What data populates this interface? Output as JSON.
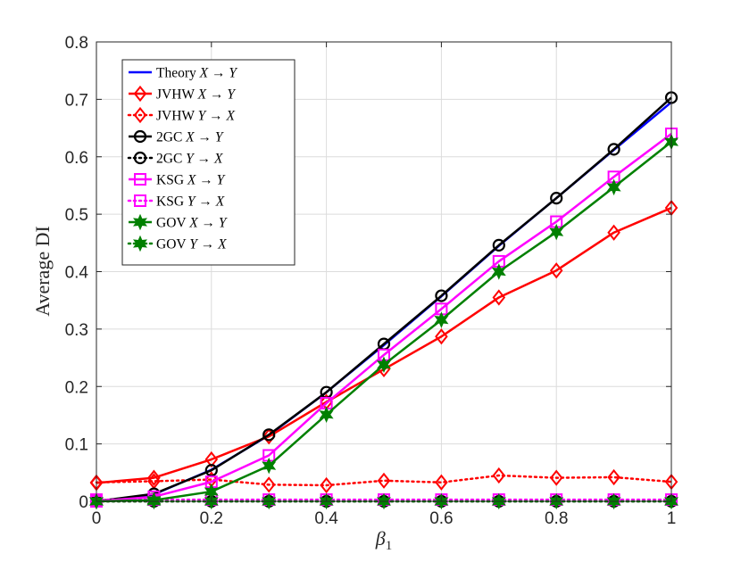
{
  "chart_data": {
    "type": "line",
    "xlabel": "β1",
    "xlabel_base": "β",
    "xlabel_sub": "1",
    "ylabel": "Average DI",
    "xlim": [
      0,
      1
    ],
    "ylim": [
      0,
      0.8
    ],
    "x_ticks": [
      0,
      0.2,
      0.4,
      0.6,
      0.8,
      1
    ],
    "x_tick_labels": [
      "0",
      "0.2",
      "0.4",
      "0.6",
      "0.8",
      "1"
    ],
    "y_ticks": [
      0,
      0.1,
      0.2,
      0.3,
      0.4,
      0.5,
      0.6,
      0.7,
      0.8
    ],
    "y_tick_labels": [
      "0",
      "0.1",
      "0.2",
      "0.3",
      "0.4",
      "0.5",
      "0.6",
      "0.7",
      "0.8"
    ],
    "grid": true,
    "legend_position": "top-left",
    "x": [
      0,
      0.1,
      0.2,
      0.3,
      0.4,
      0.5,
      0.6,
      0.7,
      0.8,
      0.9,
      1
    ],
    "series": [
      {
        "name": "Theory X → Y",
        "method": "Theory",
        "direction": "X → Y",
        "color": "#0000ff",
        "style": "solid",
        "marker": "none",
        "values": [
          0,
          0.012,
          0.055,
          0.115,
          0.19,
          0.272,
          0.357,
          0.445,
          0.528,
          0.612,
          0.695
        ]
      },
      {
        "name": "JVHW X → Y",
        "method": "JVHW",
        "direction": "X → Y",
        "color": "#ff0000",
        "style": "solid",
        "marker": "diamond",
        "values": [
          0.032,
          0.041,
          0.073,
          0.113,
          0.173,
          0.23,
          0.287,
          0.355,
          0.402,
          0.468,
          0.511
        ]
      },
      {
        "name": "JVHW Y → X",
        "method": "JVHW",
        "direction": "Y → X",
        "color": "#ff0000",
        "style": "dotted",
        "marker": "diamond",
        "values": [
          0.033,
          0.035,
          0.038,
          0.029,
          0.028,
          0.036,
          0.033,
          0.045,
          0.041,
          0.042,
          0.034
        ]
      },
      {
        "name": "2GC X → Y",
        "method": "2GC",
        "direction": "X → Y",
        "color": "#000000",
        "style": "solid",
        "marker": "circle",
        "values": [
          0,
          0.013,
          0.054,
          0.116,
          0.19,
          0.274,
          0.358,
          0.446,
          0.528,
          0.613,
          0.703
        ]
      },
      {
        "name": "2GC Y → X",
        "method": "2GC",
        "direction": "Y → X",
        "color": "#000000",
        "style": "dotted",
        "marker": "circle",
        "values": [
          0,
          0,
          0,
          0,
          0,
          0,
          0,
          0,
          0,
          0,
          0
        ]
      },
      {
        "name": "KSG X → Y",
        "method": "KSG",
        "direction": "X → Y",
        "color": "#ff00ff",
        "style": "solid",
        "marker": "square",
        "values": [
          0,
          0.008,
          0.034,
          0.08,
          0.171,
          0.255,
          0.335,
          0.418,
          0.487,
          0.565,
          0.64
        ]
      },
      {
        "name": "KSG Y → X",
        "method": "KSG",
        "direction": "Y → X",
        "color": "#ff00ff",
        "style": "dotted",
        "marker": "square",
        "values": [
          0.003,
          0.003,
          0.003,
          0.003,
          0.003,
          0.003,
          0.003,
          0.003,
          0.003,
          0.003,
          0.003
        ]
      },
      {
        "name": "GOV X → Y",
        "method": "GOV",
        "direction": "X → Y",
        "color": "#008000",
        "style": "solid",
        "marker": "hexagram",
        "values": [
          0,
          0.002,
          0.017,
          0.062,
          0.151,
          0.238,
          0.316,
          0.4,
          0.469,
          0.547,
          0.626
        ]
      },
      {
        "name": "GOV Y → X",
        "method": "GOV",
        "direction": "Y → X",
        "color": "#008000",
        "style": "dotted",
        "marker": "hexagram",
        "values": [
          0,
          0,
          0,
          0,
          0,
          0,
          0,
          0,
          0,
          0,
          0
        ]
      }
    ]
  }
}
